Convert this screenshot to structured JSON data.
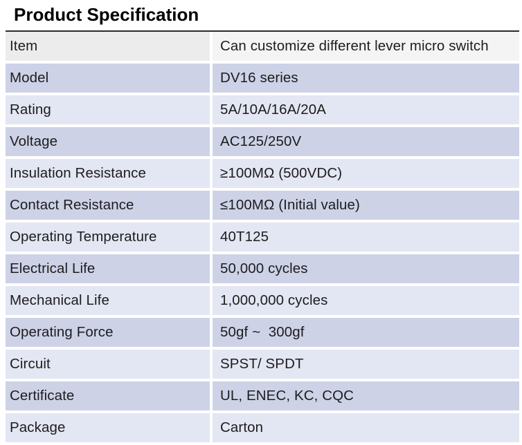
{
  "page": {
    "title": "Product Specification"
  },
  "table": {
    "rows": [
      {
        "label": "Item",
        "value": "Can customize different lever micro switch"
      },
      {
        "label": "Model",
        "value": "DV16 series"
      },
      {
        "label": "Rating",
        "value": "5A/10A/16A/20A"
      },
      {
        "label": "Voltage",
        "value": "AC125/250V"
      },
      {
        "label": "Insulation Resistance",
        "value": "≥100MΩ (500VDC)"
      },
      {
        "label": "Contact Resistance",
        "value": "≤100MΩ (Initial value)"
      },
      {
        "label": "Operating Temperature",
        "value": "40T125"
      },
      {
        "label": "Electrical Life",
        "value": "50,000 cycles"
      },
      {
        "label": "Mechanical Life",
        "value": "1,000,000 cycles"
      },
      {
        "label": "Operating Force",
        "value": "50gf ~  300gf"
      },
      {
        "label": "Circuit",
        "value": "SPST/ SPDT"
      },
      {
        "label": "Certificate",
        "value": "UL, ENEC, KC, CQC"
      },
      {
        "label": "Package",
        "value": "Carton"
      }
    ],
    "colors": {
      "header_left": "#ececec",
      "header_right": "#f4f4f4",
      "row_dark": "#cdd2e7",
      "row_light": "#e3e6f3",
      "top_border": "#2b2b2b",
      "text": "#1d1d1d"
    }
  }
}
